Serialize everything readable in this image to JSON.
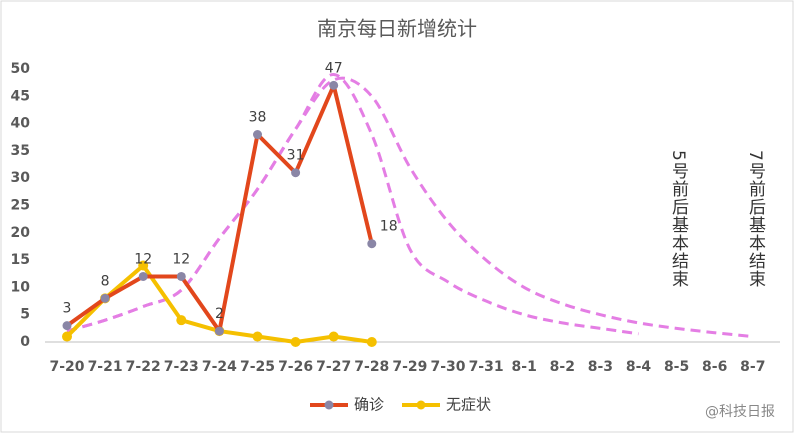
{
  "chart_data": {
    "type": "line",
    "title": "南京每日新增统计",
    "categories": [
      "7-20",
      "7-21",
      "7-22",
      "7-23",
      "7-24",
      "7-25",
      "7-26",
      "7-27",
      "7-28",
      "7-29",
      "7-30",
      "7-31",
      "8-1",
      "8-2",
      "8-3",
      "8-4",
      "8-5",
      "8-6",
      "8-7"
    ],
    "series": [
      {
        "name": "确诊",
        "color": "#e2471c",
        "marker_color": "#8a86a6",
        "values": [
          3,
          8,
          12,
          12,
          2,
          38,
          31,
          47,
          18,
          null,
          null,
          null,
          null,
          null,
          null,
          null,
          null,
          null,
          null
        ],
        "value_labels": true
      },
      {
        "name": "无症状",
        "color": "#f5c000",
        "values": [
          1,
          8,
          14,
          4,
          2,
          1,
          0,
          1,
          0,
          null,
          null,
          null,
          null,
          null,
          null,
          null,
          null,
          null,
          null
        ]
      }
    ],
    "curves": [
      {
        "color": "#e47ee4",
        "values": [
          2,
          4,
          6.5,
          9.5,
          19,
          28,
          39,
          49,
          38,
          17,
          11,
          7.5,
          5,
          3.5,
          2.5,
          1.5,
          null,
          null,
          null
        ]
      },
      {
        "color": "#e47ee4",
        "values": [
          2,
          4,
          6.5,
          9.5,
          19,
          28,
          39,
          48,
          45,
          32,
          22,
          15,
          10,
          7,
          5,
          3.5,
          2.5,
          1.7,
          1
        ]
      }
    ],
    "annotations": [
      "5号前后基本结束",
      "7号前后基本结束"
    ],
    "watermark": "@科技日报",
    "ylim": [
      0,
      50
    ],
    "yticks": [
      0,
      5,
      10,
      15,
      20,
      25,
      30,
      35,
      40,
      45,
      50
    ],
    "grid": false,
    "legend": "bottom"
  }
}
